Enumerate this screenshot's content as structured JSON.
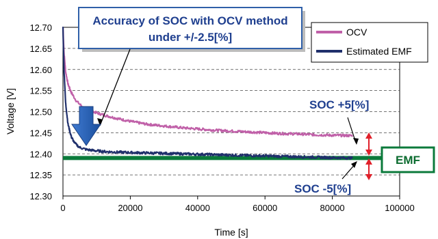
{
  "chart_data": {
    "type": "line",
    "xlabel": "Time [s]",
    "ylabel": "Voltage [V]",
    "xlim": [
      0,
      100000
    ],
    "ylim": [
      12.3,
      12.7
    ],
    "x_ticks": [
      "0",
      "20000",
      "40000",
      "60000",
      "80000",
      "100000"
    ],
    "y_ticks": [
      "12.30",
      "12.35",
      "12.40",
      "12.45",
      "12.50",
      "12.55",
      "12.60",
      "12.65",
      "12.70"
    ],
    "grid": "horizontal dashed",
    "legend_position": "top-right",
    "series": [
      {
        "name": "OCV",
        "color": "#c060a8",
        "x": [
          0,
          300,
          800,
          1500,
          2500,
          4000,
          6000,
          8000,
          10000,
          13000,
          16000,
          20000,
          25000,
          30000,
          35000,
          40000,
          45000,
          50000,
          55000,
          60000,
          65000,
          70000,
          75000,
          80000,
          86000
        ],
        "y": [
          12.7,
          12.64,
          12.595,
          12.565,
          12.545,
          12.525,
          12.51,
          12.503,
          12.497,
          12.49,
          12.484,
          12.477,
          12.47,
          12.466,
          12.462,
          12.459,
          12.456,
          12.454,
          12.452,
          12.45,
          12.448,
          12.447,
          12.445,
          12.444,
          12.443
        ]
      },
      {
        "name": "Estimated EMF",
        "color": "#1f2f6b",
        "x": [
          0,
          300,
          800,
          1500,
          2500,
          3500,
          5000,
          7000,
          10000,
          13000,
          16000,
          20000,
          25000,
          30000,
          40000,
          50000,
          60000,
          70000,
          80000,
          86000
        ],
        "y": [
          12.7,
          12.6,
          12.52,
          12.47,
          12.44,
          12.425,
          12.415,
          12.41,
          12.407,
          12.405,
          12.404,
          12.403,
          12.402,
          12.401,
          12.399,
          12.397,
          12.395,
          12.393,
          12.391,
          12.39
        ]
      }
    ],
    "reference_line": {
      "label": "EMF",
      "y": 12.39,
      "color": "#0b7a3b"
    },
    "annotations": {
      "callout_line1": "Accuracy of SOC with OCV method",
      "callout_line2": "under +/-2.5[%]",
      "soc_plus": "SOC +5[%]",
      "soc_minus": "SOC -5[%]"
    }
  }
}
